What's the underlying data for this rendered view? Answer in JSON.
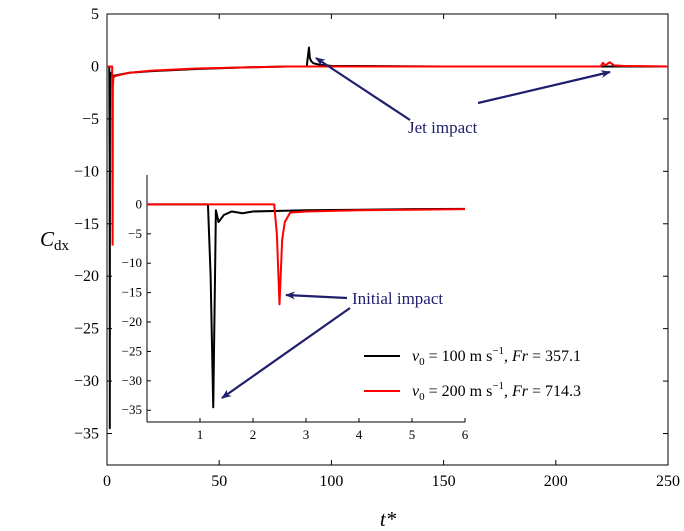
{
  "chart_data": {
    "type": "line",
    "ylabel_main": "C",
    "ylabel_sub": "dx",
    "xlabel": "t*",
    "xlim": [
      0,
      250
    ],
    "ylim": [
      -38,
      5
    ],
    "xticks": [
      0,
      50,
      100,
      150,
      200,
      250
    ],
    "xtick_labels": [
      "0",
      "50",
      "100",
      "150",
      "200",
      "250"
    ],
    "yticks": [
      5,
      0,
      -5,
      -10,
      -15,
      -20,
      -25,
      -30,
      -35
    ],
    "ytick_labels": [
      "5",
      "0",
      "−5",
      "−10",
      "−15",
      "−20",
      "−25",
      "−30",
      "−35"
    ],
    "grid": false,
    "series": [
      {
        "name": "v0 = 100 m s−1, Fr = 357.1",
        "color": "#000000",
        "x": [
          0,
          1.0,
          1.2,
          1.25,
          1.3,
          1.4,
          1.6,
          2,
          3,
          5,
          10,
          20,
          40,
          60,
          80,
          89,
          90,
          90.4,
          91,
          92,
          95,
          100,
          150,
          200,
          250
        ],
        "y": [
          0,
          0,
          -10,
          -34.5,
          -5,
          -1.2,
          -0.6,
          -0.8,
          -0.9,
          -0.8,
          -0.6,
          -0.45,
          -0.25,
          -0.1,
          0,
          0,
          1.8,
          0.8,
          0.5,
          0.3,
          0.15,
          0.05,
          0,
          0,
          0
        ]
      },
      {
        "name": "v0 = 200 m s−1, Fr = 714.3",
        "color": "#ff0000",
        "x": [
          0,
          2.3,
          2.4,
          2.5,
          2.55,
          2.6,
          2.8,
          3,
          4,
          6,
          10,
          20,
          40,
          60,
          80,
          100,
          150,
          200,
          220,
          221,
          222,
          224,
          226,
          230,
          250
        ],
        "y": [
          0,
          0,
          -8,
          -17,
          -10,
          -2,
          -1.2,
          -1,
          -0.9,
          -0.8,
          -0.6,
          -0.4,
          -0.2,
          -0.1,
          0,
          0,
          0,
          0,
          0,
          0.35,
          0.1,
          0.4,
          0.1,
          0.05,
          0
        ]
      }
    ],
    "annotations": [
      {
        "text": "Jet impact"
      },
      {
        "text": "Initial impact"
      }
    ],
    "inset": {
      "type": "line",
      "xlim": [
        0,
        6
      ],
      "ylim": [
        -37,
        5
      ],
      "xticks": [
        1,
        2,
        3,
        4,
        5,
        6
      ],
      "xtick_labels": [
        "1",
        "2",
        "3",
        "4",
        "5",
        "6"
      ],
      "yticks": [
        0,
        -5,
        -10,
        -15,
        -20,
        -25,
        -30,
        -35
      ],
      "ytick_labels": [
        "0",
        "−5",
        "−10",
        "−15",
        "−20",
        "−25",
        "−30",
        "−35"
      ],
      "series": [
        {
          "name": "v0 = 100 m s−1, Fr = 357.1",
          "color": "#000000",
          "x": [
            0,
            1.15,
            1.2,
            1.25,
            1.3,
            1.35,
            1.45,
            1.6,
            1.8,
            2,
            2.5,
            3,
            4,
            5,
            6
          ],
          "y": [
            0,
            0,
            -12,
            -34.5,
            -1,
            -3,
            -1.8,
            -1.2,
            -1.5,
            -1.2,
            -1.1,
            -1,
            -0.9,
            -0.8,
            -0.75
          ]
        },
        {
          "name": "v0 = 200 m s−1, Fr = 714.3",
          "color": "#ff0000",
          "x": [
            0,
            2.4,
            2.45,
            2.5,
            2.55,
            2.6,
            2.7,
            3,
            3.5,
            4,
            5,
            6
          ],
          "y": [
            0,
            0,
            -5,
            -17,
            -6,
            -3,
            -1.4,
            -1.2,
            -1.1,
            -1,
            -0.9,
            -0.8
          ]
        }
      ]
    },
    "legend": {
      "placement": "inside inset, bottom-right",
      "entries": [
        {
          "v": "v",
          "sub": "0",
          "eq1": " = 100 m s",
          "sup": "−1",
          "mid": ", ",
          "fr": "Fr",
          "eq2": " = 357.1",
          "color": "#000000"
        },
        {
          "v": "v",
          "sub": "0",
          "eq1": " = 200 m s",
          "sup": "−1",
          "mid": ", ",
          "fr": "Fr",
          "eq2": " = 714.3",
          "color": "#ff0000"
        }
      ]
    },
    "colors": {
      "arrow": "#1f1f6e",
      "annotation_text": "#1f1f6e"
    }
  }
}
